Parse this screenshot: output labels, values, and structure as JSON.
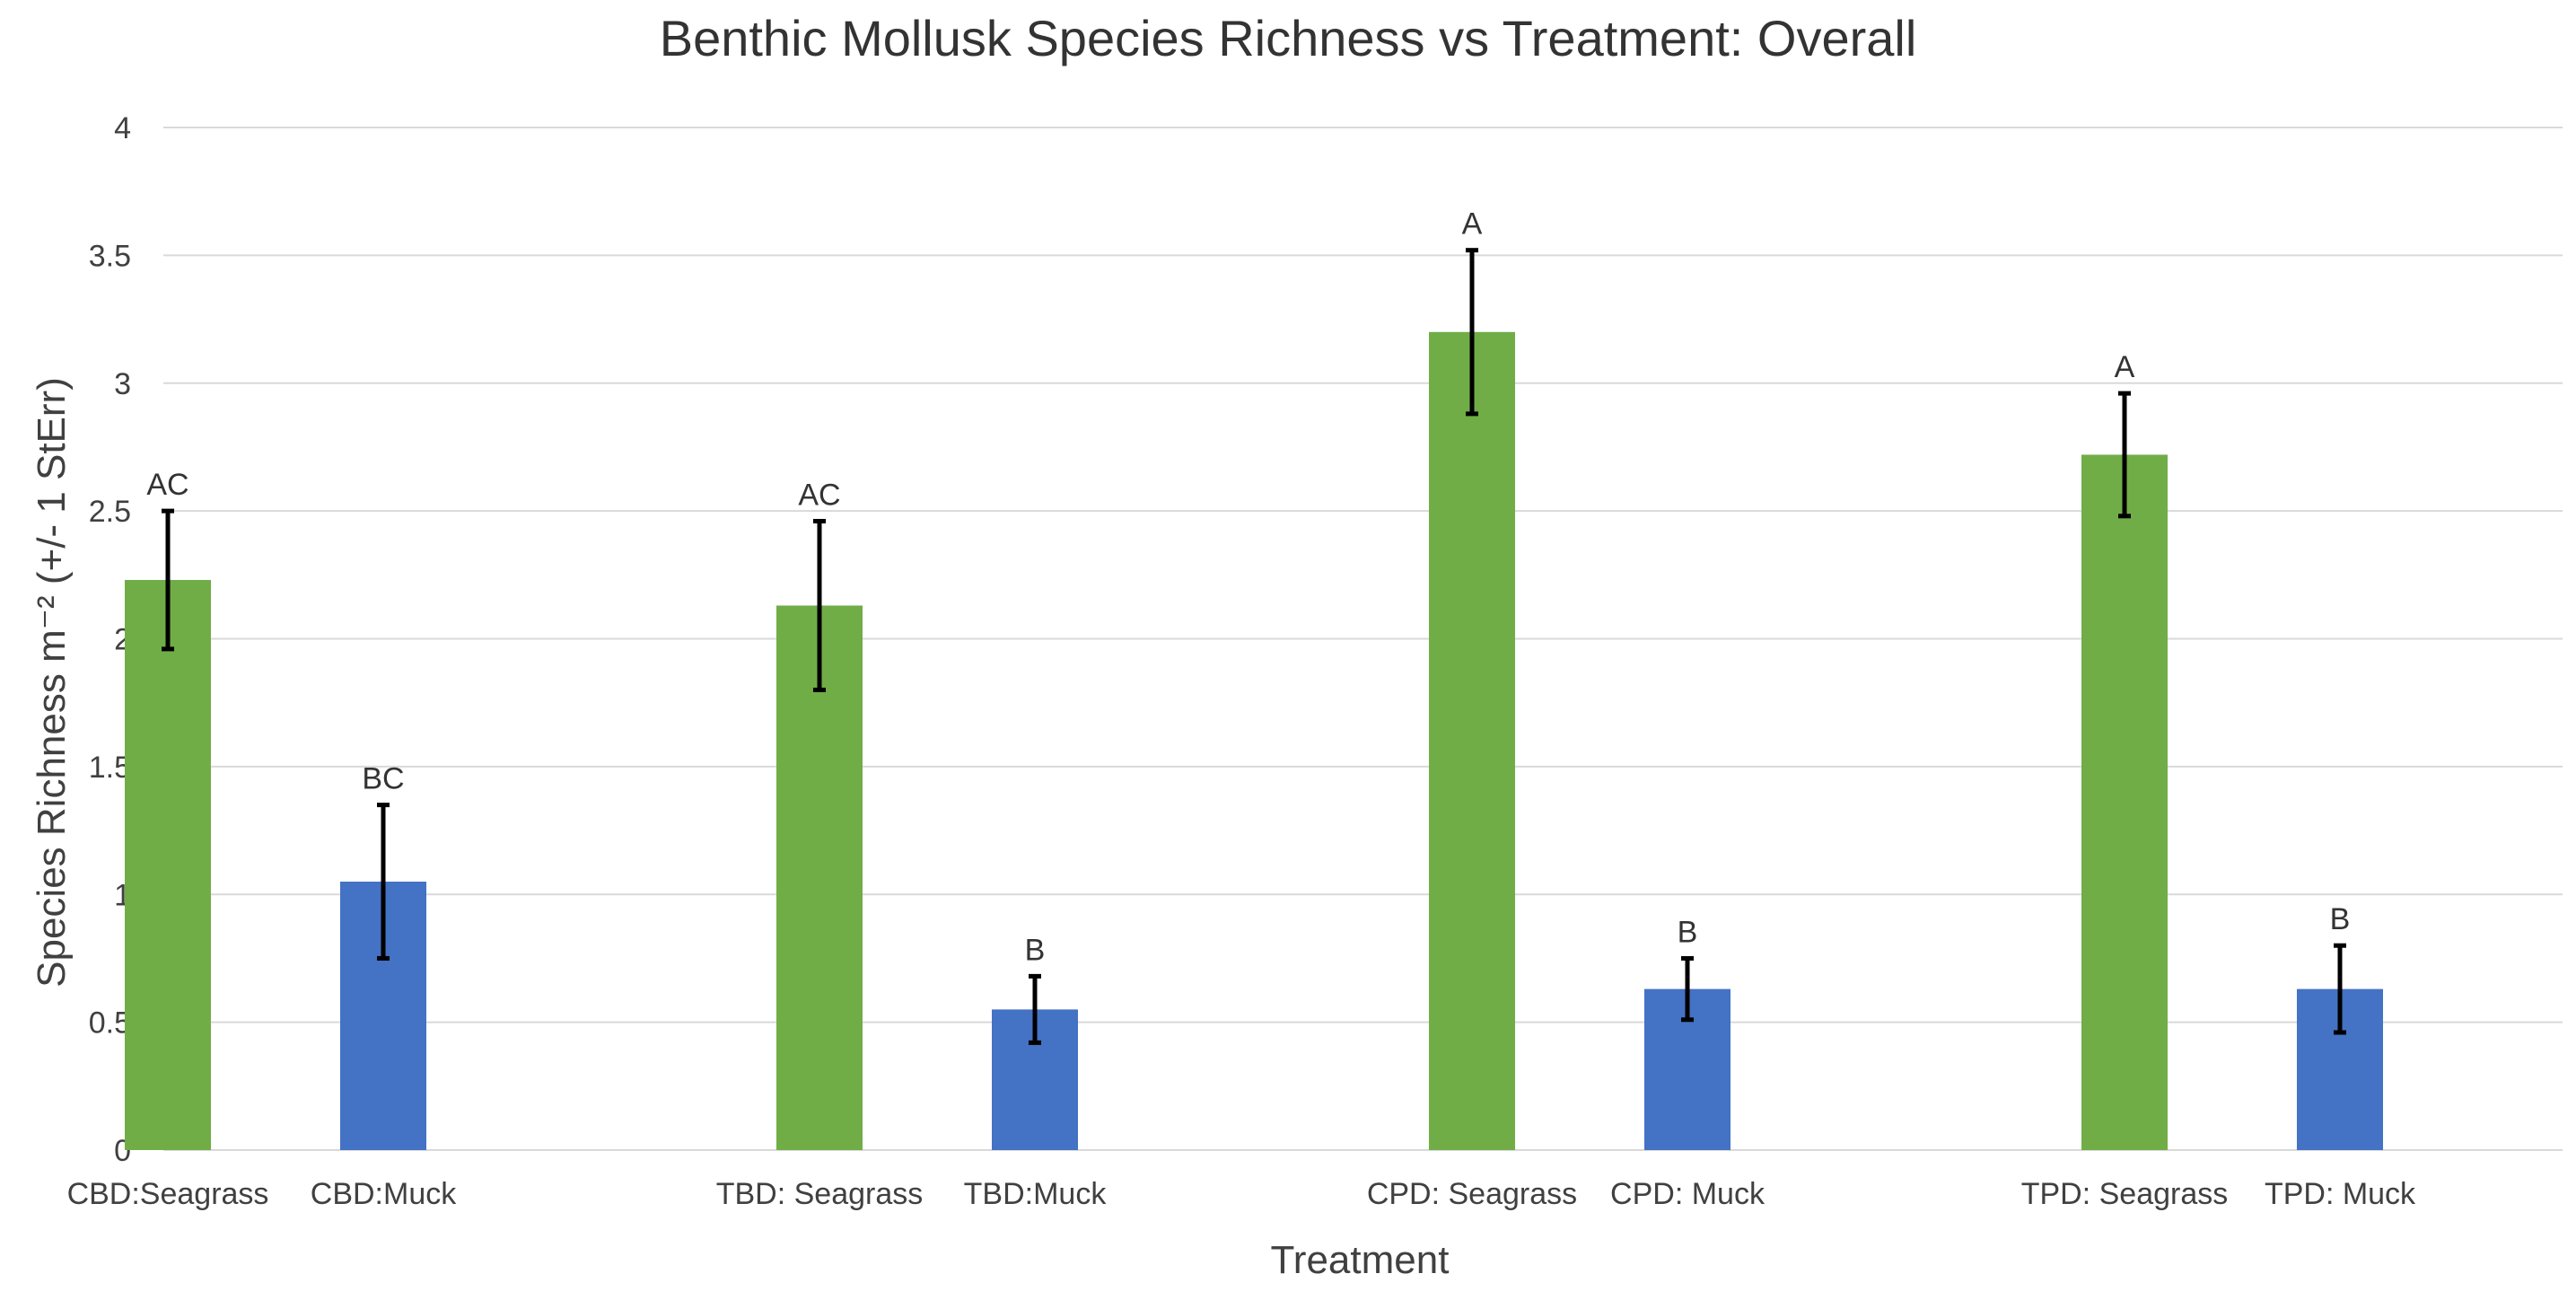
{
  "chart_data": {
    "type": "bar",
    "title": "Benthic Mollusk Species Richness vs Treatment: Overall",
    "xlabel": "Treatment",
    "ylabel": "Species Richness m⁻² (+/- 1 StErr)",
    "ylim": [
      0,
      4
    ],
    "yticks": [
      0,
      0.5,
      1,
      1.5,
      2,
      2.5,
      3,
      3.5,
      4
    ],
    "ytick_labels": [
      "0",
      "0.5",
      "1",
      "1.5",
      "2",
      "2.5",
      "3",
      "3.5",
      "4"
    ],
    "grid": true,
    "categories": [
      "CBD:Seagrass",
      "CBD:Muck",
      "TBD: Seagrass",
      "TBD:Muck",
      "CPD: Seagrass",
      "CPD: Muck",
      "TPD: Seagrass",
      "TPD: Muck"
    ],
    "values": [
      2.23,
      1.05,
      2.13,
      0.55,
      3.2,
      0.63,
      2.72,
      0.63
    ],
    "errors": [
      0.27,
      0.3,
      0.33,
      0.13,
      0.32,
      0.12,
      0.24,
      0.17
    ],
    "letters": [
      "AC",
      "BC",
      "AC",
      "B",
      "A",
      "B",
      "A",
      "B"
    ],
    "bar_colors": [
      "#70ad47",
      "#4472c4",
      "#70ad47",
      "#4472c4",
      "#70ad47",
      "#4472c4",
      "#70ad47",
      "#4472c4"
    ]
  }
}
